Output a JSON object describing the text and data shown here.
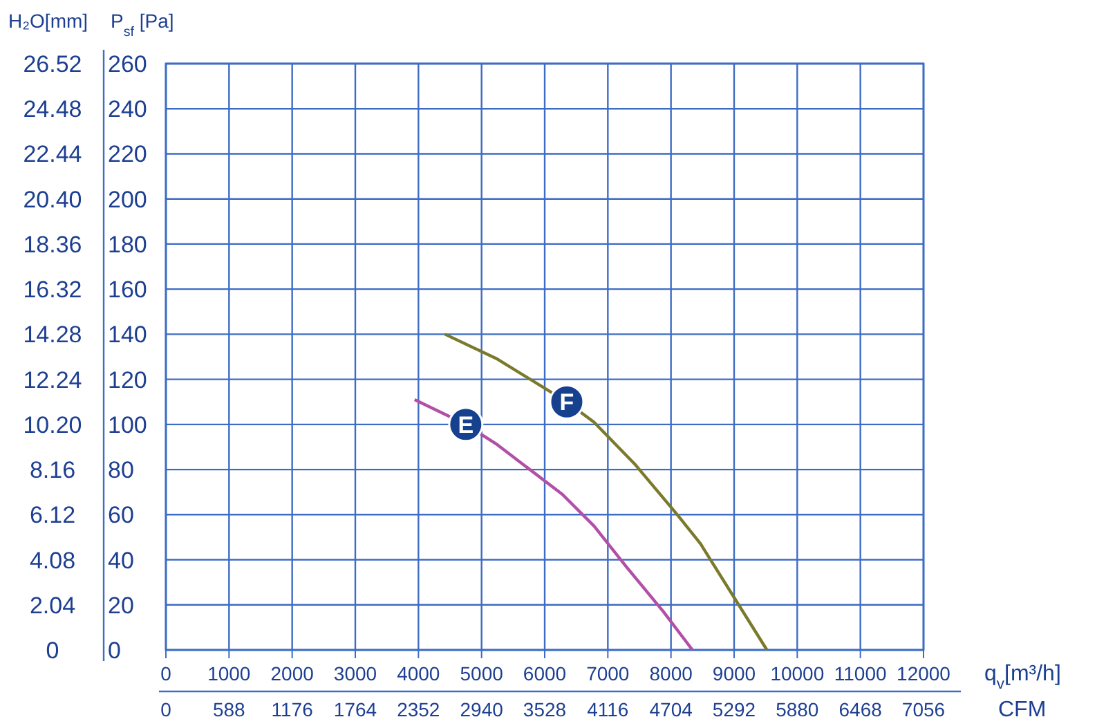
{
  "chart_data": {
    "type": "line",
    "xlabel": "q$_{v}$[m³/h]",
    "x2label": "CFM",
    "ylabel": "P$_{sf}$ [Pa]",
    "y2label": "H₂O[mm]",
    "xlim": [
      0,
      12000
    ],
    "xticks": [
      0,
      1000,
      2000,
      3000,
      4000,
      5000,
      6000,
      7000,
      8000,
      9000,
      10000,
      11000,
      12000
    ],
    "x2lim": [
      0,
      7056
    ],
    "x2ticks": [
      0,
      588,
      1176,
      1764,
      2352,
      2940,
      3528,
      4116,
      4704,
      5292,
      5880,
      6468,
      7056
    ],
    "ylim": [
      0,
      260
    ],
    "yticks": [
      0,
      20,
      40,
      60,
      80,
      100,
      120,
      140,
      160,
      180,
      200,
      220,
      240,
      260
    ],
    "y2lim": [
      0,
      26.52
    ],
    "y2ticks": [
      0,
      2.04,
      4.08,
      6.12,
      8.16,
      {
        "value": 10.2,
        "label": "10.20"
      },
      12.24,
      14.28,
      16.32,
      18.36,
      {
        "value": 20.4,
        "label": "20.40"
      },
      22.44,
      24.48,
      26.52
    ],
    "grid": true,
    "marker": "none",
    "line_style": "solid",
    "series": [
      {
        "name": "E",
        "color": "#b24fa6",
        "x": [
          3940,
          4750,
          5250,
          6280,
          6780,
          7290,
          7880,
          8340
        ],
        "values": [
          111,
          100,
          91,
          69,
          55,
          37,
          17,
          0
        ]
      },
      {
        "name": "F",
        "color": "#7b7a2c",
        "x": [
          4420,
          5250,
          6350,
          6780,
          7440,
          8100,
          8470,
          9520
        ],
        "values": [
          140,
          129,
          110,
          101,
          82,
          60,
          47,
          0
        ]
      }
    ]
  }
}
